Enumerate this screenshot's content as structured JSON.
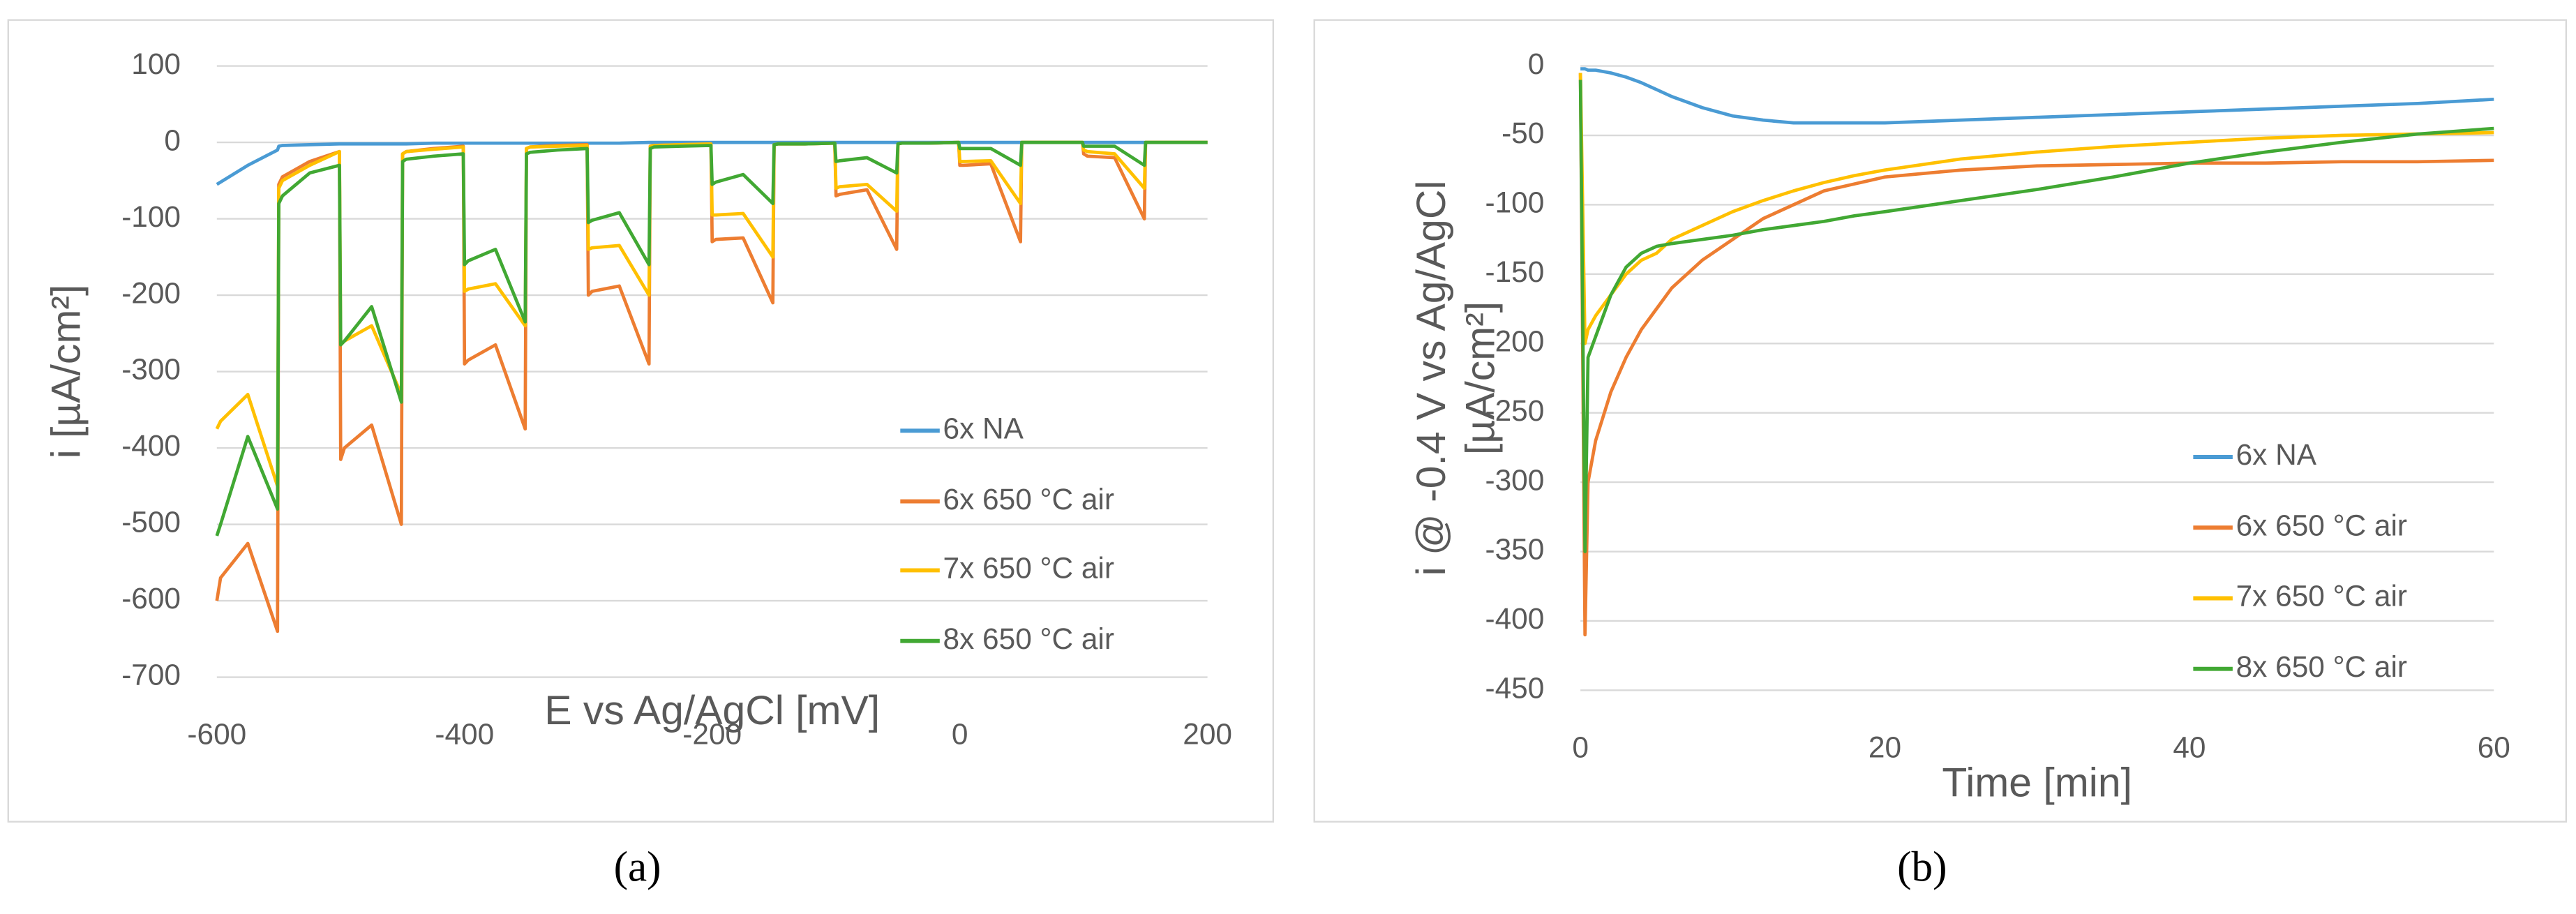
{
  "chart_data": [
    {
      "type": "line",
      "xlabel": "E vs Ag/AgCl [mV]",
      "ylabel": [
        "i [µA/cm²]"
      ],
      "panel_label": "(a)",
      "x": [
        -600,
        -597,
        -575,
        -551,
        -550,
        -547,
        -525,
        -501,
        -500,
        -497,
        -475,
        -451,
        -450,
        -447,
        -425,
        -401,
        -400,
        -397,
        -375,
        -351,
        -350,
        -347,
        -325,
        -301,
        -300,
        -297,
        -275,
        -251,
        -250,
        -247,
        -225,
        -201,
        -200,
        -197,
        -175,
        -151,
        -150,
        -147,
        -125,
        -101,
        -100,
        -97,
        -75,
        -51,
        -50,
        -47,
        -25,
        -1,
        0,
        3,
        25,
        49,
        50,
        53,
        75,
        99,
        100,
        103,
        125,
        149,
        150,
        153,
        175,
        199,
        200
      ],
      "xlim": [
        -600,
        200
      ],
      "xticks": [
        -600,
        -400,
        -200,
        0,
        200
      ],
      "ylim": [
        -700,
        100
      ],
      "yticks": [
        -700,
        -600,
        -500,
        -400,
        -300,
        -200,
        -100,
        0,
        100
      ],
      "grid": true,
      "series": [
        {
          "name": "6x NA",
          "color": "#4a9bd4",
          "values": [
            -55,
            -52,
            -30,
            -10,
            -5,
            -4,
            -3,
            -2,
            -2,
            -2,
            -2,
            -2,
            -2,
            -2,
            -1,
            -1,
            -1,
            -1,
            -1,
            -1,
            -1,
            -1,
            -1,
            -1,
            -1,
            -1,
            -1,
            0,
            0,
            0,
            0,
            0,
            0,
            0,
            0,
            0,
            0,
            0,
            0,
            0,
            0,
            0,
            0,
            0,
            0,
            0,
            0,
            0,
            0,
            0,
            0,
            0,
            0,
            0,
            0,
            0,
            0,
            0,
            0,
            0,
            0,
            0,
            0,
            0,
            0
          ]
        },
        {
          "name": "6x 650 °C air",
          "color": "#ed7d31",
          "values": [
            -600,
            -570,
            -525,
            -640,
            -55,
            -45,
            -25,
            -12,
            -415,
            -400,
            -370,
            -500,
            -15,
            -12,
            -8,
            -5,
            -290,
            -285,
            -265,
            -375,
            -8,
            -6,
            -4,
            -3,
            -200,
            -195,
            -188,
            -290,
            -5,
            -4,
            -3,
            -2,
            -130,
            -127,
            -125,
            -210,
            -3,
            -2,
            -2,
            -1,
            -70,
            -68,
            -62,
            -140,
            -2,
            -1,
            -1,
            0,
            -30,
            -30,
            -28,
            -130,
            0,
            0,
            0,
            0,
            -15,
            -18,
            -20,
            -100,
            0,
            0,
            0,
            0,
            0
          ]
        },
        {
          "name": "7x 650 °C air",
          "color": "#ffc000",
          "values": [
            -375,
            -365,
            -330,
            -450,
            -60,
            -50,
            -30,
            -12,
            -265,
            -260,
            -240,
            -330,
            -15,
            -12,
            -9,
            -6,
            -195,
            -192,
            -185,
            -240,
            -8,
            -6,
            -5,
            -4,
            -140,
            -138,
            -135,
            -200,
            -5,
            -4,
            -3,
            -2,
            -95,
            -95,
            -93,
            -150,
            -3,
            -2,
            -2,
            -1,
            -60,
            -58,
            -55,
            -90,
            -2,
            -1,
            -1,
            0,
            -25,
            -25,
            -24,
            -80,
            0,
            0,
            0,
            0,
            -10,
            -12,
            -15,
            -60,
            0,
            0,
            0,
            0,
            0
          ]
        },
        {
          "name": "8x 650 °C air",
          "color": "#41a833",
          "values": [
            -515,
            -500,
            -385,
            -480,
            -80,
            -70,
            -40,
            -30,
            -265,
            -260,
            -215,
            -340,
            -25,
            -22,
            -18,
            -15,
            -160,
            -155,
            -140,
            -235,
            -15,
            -13,
            -10,
            -8,
            -105,
            -102,
            -92,
            -160,
            -8,
            -6,
            -5,
            -4,
            -55,
            -52,
            -42,
            -80,
            -3,
            -2,
            -2,
            -1,
            -25,
            -24,
            -20,
            -40,
            -2,
            -1,
            -1,
            0,
            -8,
            -8,
            -8,
            -30,
            0,
            0,
            0,
            0,
            -5,
            -5,
            -5,
            -30,
            0,
            0,
            0,
            0,
            0
          ]
        }
      ]
    },
    {
      "type": "line",
      "xlabel": "Time [min]",
      "ylabel": [
        "i @ -0.4 V vs Ag/AgCl",
        "[µA/cm²]"
      ],
      "panel_label": "(b)",
      "x": [
        0,
        0.3,
        0.5,
        1,
        2,
        3,
        4,
        5,
        6,
        8,
        10,
        12,
        14,
        16,
        18,
        20,
        25,
        30,
        35,
        40,
        45,
        50,
        55,
        60
      ],
      "xlim": [
        0,
        60
      ],
      "xticks": [
        0,
        20,
        40,
        60
      ],
      "ylim": [
        -450,
        0
      ],
      "yticks": [
        -450,
        -400,
        -350,
        -300,
        -250,
        -200,
        -150,
        -100,
        -50,
        0
      ],
      "grid": true,
      "series": [
        {
          "name": "6x NA",
          "color": "#4a9bd4",
          "values": [
            -2,
            -2,
            -3,
            -3,
            -5,
            -8,
            -12,
            -17,
            -22,
            -30,
            -36,
            -39,
            -41,
            -41,
            -41,
            -41,
            -39,
            -37,
            -35,
            -33,
            -31,
            -29,
            -27,
            -24
          ]
        },
        {
          "name": "6x 650 °C air",
          "color": "#ed7d31",
          "values": [
            -5,
            -410,
            -300,
            -270,
            -235,
            -210,
            -190,
            -175,
            -160,
            -140,
            -125,
            -110,
            -100,
            -90,
            -85,
            -80,
            -75,
            -72,
            -71,
            -70,
            -70,
            -69,
            -69,
            -68
          ]
        },
        {
          "name": "7x 650 °C air",
          "color": "#ffc000",
          "values": [
            -5,
            -200,
            -190,
            -180,
            -165,
            -150,
            -140,
            -135,
            -125,
            -115,
            -105,
            -97,
            -90,
            -84,
            -79,
            -75,
            -67,
            -62,
            -58,
            -55,
            -52,
            -50,
            -49,
            -48
          ]
        },
        {
          "name": "8x 650 °C air",
          "color": "#41a833",
          "values": [
            -10,
            -350,
            -210,
            -195,
            -165,
            -145,
            -135,
            -130,
            -128,
            -125,
            -122,
            -118,
            -115,
            -112,
            -108,
            -105,
            -97,
            -89,
            -80,
            -70,
            -62,
            -55,
            -49,
            -45
          ]
        }
      ]
    }
  ]
}
